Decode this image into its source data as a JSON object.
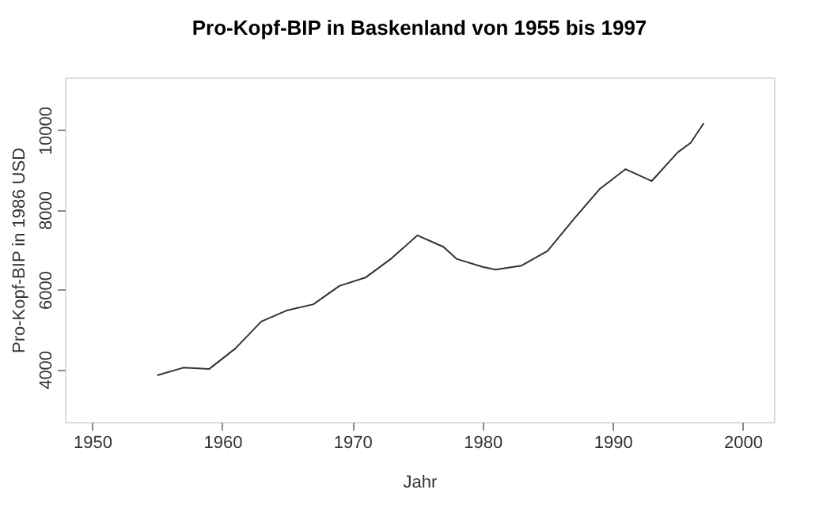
{
  "chart_data": {
    "type": "line",
    "title": "Pro-Kopf-BIP in Baskenland von 1955 bis 1997",
    "xlabel": "Jahr",
    "ylabel": "Pro-Kopf-BIP in 1986 USD",
    "x": [
      1955,
      1957,
      1959,
      1961,
      1963,
      1965,
      1967,
      1969,
      1971,
      1973,
      1975,
      1977,
      1978,
      1980,
      1981,
      1983,
      1985,
      1987,
      1989,
      1991,
      1993,
      1995,
      1996,
      1997
    ],
    "series": [
      {
        "color": "#333333",
        "values": [
          3850,
          4040,
          4010,
          4520,
          5200,
          5480,
          5630,
          6090,
          6300,
          6780,
          7360,
          7070,
          6770,
          6570,
          6500,
          6600,
          6970,
          7760,
          8520,
          9020,
          8720,
          9440,
          9680,
          10170
        ]
      }
    ],
    "xlim": [
      1947.9,
      2002.4
    ],
    "ylim": [
      2680,
      11320
    ],
    "xticks": [
      1950,
      1960,
      1970,
      1980,
      1990,
      2000
    ],
    "yticks": [
      4000,
      6000,
      8000,
      10000
    ],
    "grid": false,
    "legend": false,
    "marker": "none",
    "line_style": "solid"
  }
}
